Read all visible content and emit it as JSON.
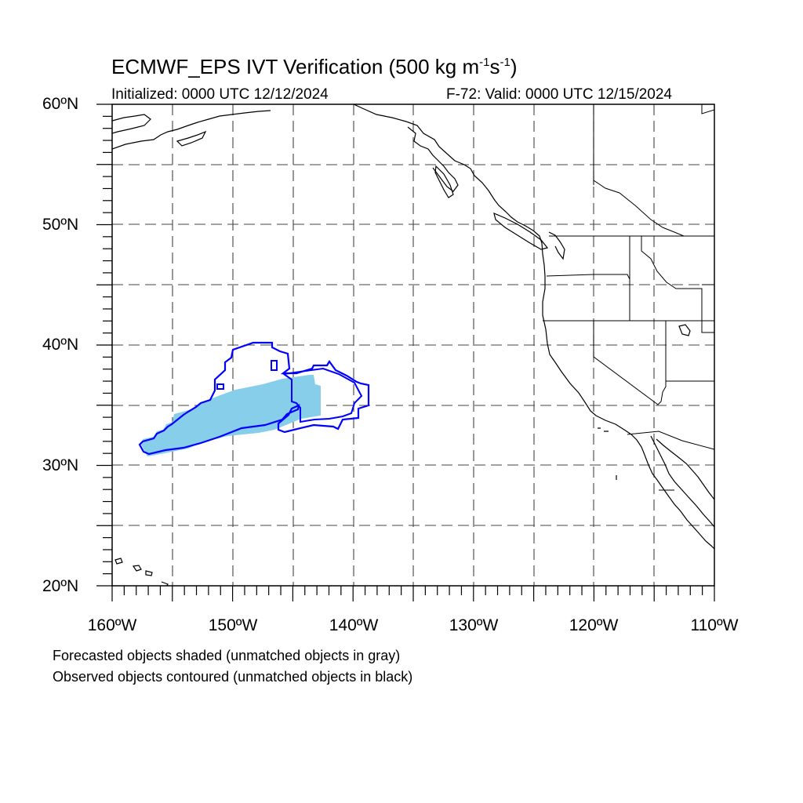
{
  "title": {
    "prefix": "ECMWF_EPS IVT Verification (500 kg m",
    "exp1": "-1",
    "mid": "s",
    "exp2": "-1",
    "suffix": ")"
  },
  "init_label": "Initialized: 0000 UTC 12/12/2024",
  "valid_label": "F-72: Valid: 0000 UTC 12/15/2024",
  "lat_labels": [
    "60ºN",
    "50ºN",
    "40ºN",
    "30ºN",
    "20ºN"
  ],
  "lon_labels": [
    "160ºW",
    "150ºW",
    "140ºW",
    "130ºW",
    "120ºW",
    "110ºW"
  ],
  "map": {
    "lon_range": [
      -160,
      -110
    ],
    "lat_range": [
      20,
      60
    ],
    "grid_lons": [
      -155,
      -150,
      -145,
      -140,
      -135,
      -130,
      -125,
      -120,
      -115
    ],
    "grid_lats": [
      25,
      30,
      35,
      40,
      45,
      50,
      55
    ],
    "gridline_style": "dashed",
    "forecast_fill_color": "#87ceeb",
    "observed_contour_color": "#0000ff"
  },
  "notes": [
    "Forecasted objects shaded (unmatched objects in gray)",
    "Observed objects contoured (unmatched objects in black)"
  ]
}
